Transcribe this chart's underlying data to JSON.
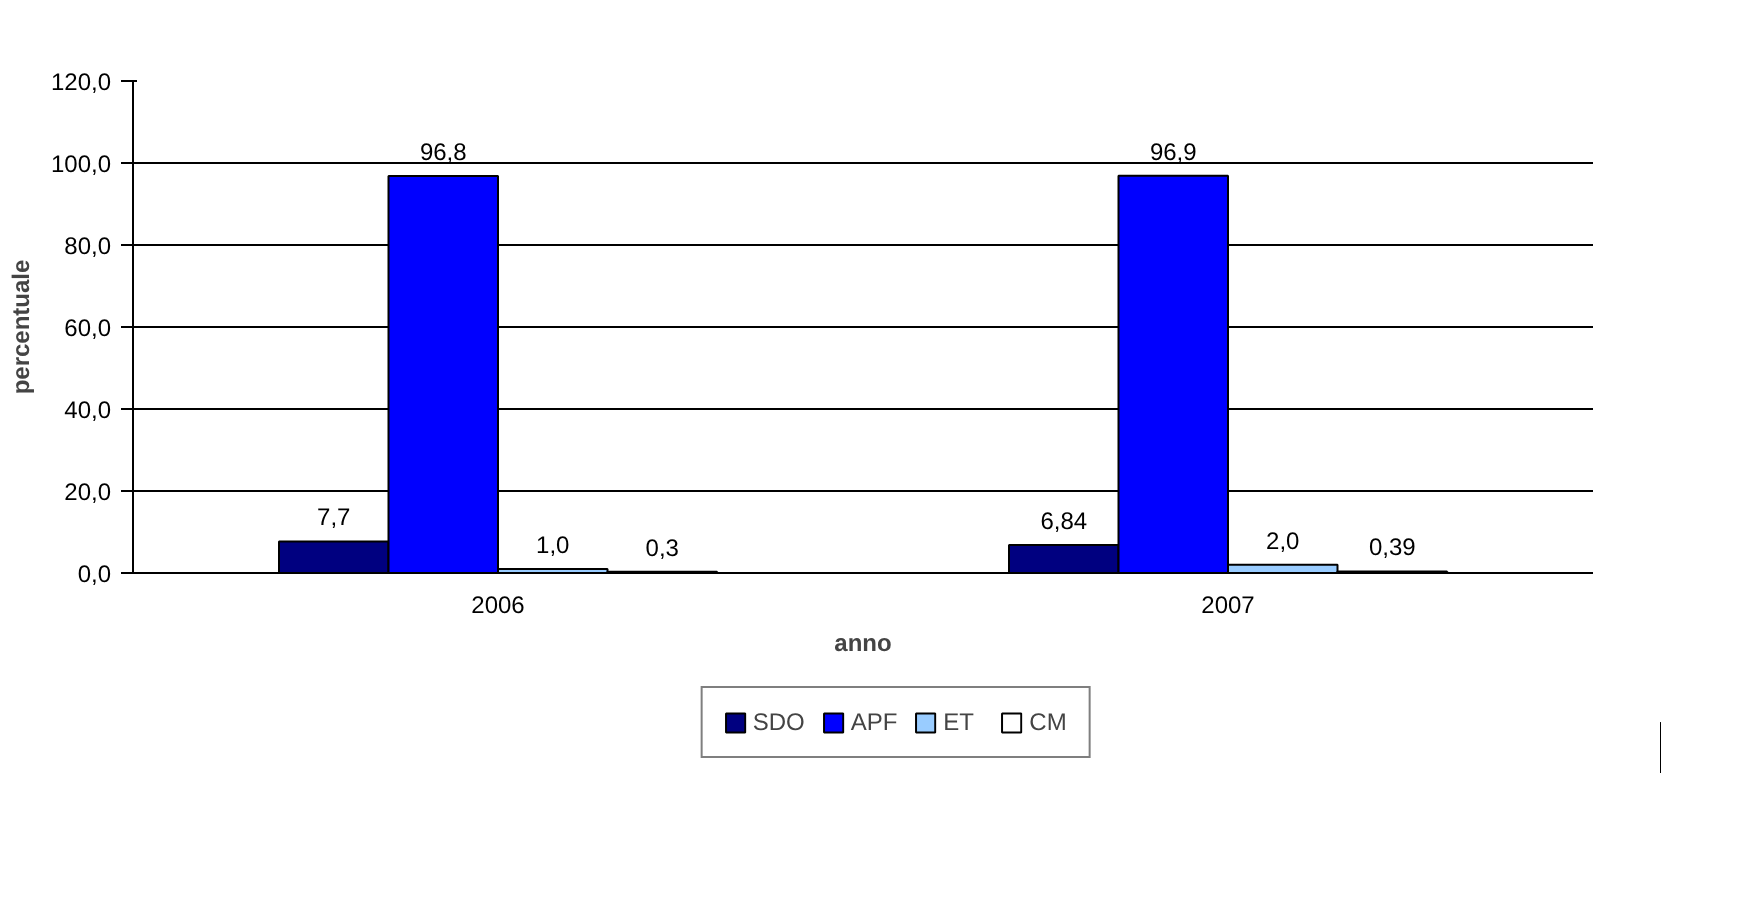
{
  "chart_data": {
    "type": "bar",
    "xlabel": "anno",
    "ylabel": "percentuale",
    "categories": [
      "2006",
      "2007"
    ],
    "series": [
      {
        "name": "SDO",
        "color": "#000080",
        "values": [
          7.7,
          6.84
        ],
        "value_labels": [
          "7,7",
          "6,84"
        ]
      },
      {
        "name": "APF",
        "color": "#0000ff",
        "values": [
          96.8,
          96.9
        ],
        "value_labels": [
          "96,8",
          "96,9"
        ]
      },
      {
        "name": "ET",
        "color": "#99ccff",
        "values": [
          1.0,
          2.0
        ],
        "value_labels": [
          "1,0",
          "2,0"
        ]
      },
      {
        "name": "CM",
        "color": "#ffffff",
        "values": [
          0.3,
          0.39
        ],
        "value_labels": [
          "0,3",
          "0,39"
        ]
      }
    ],
    "ylim": [
      0,
      120
    ],
    "yticks": [
      {
        "value": 0,
        "label": "0,0"
      },
      {
        "value": 20,
        "label": "20,0"
      },
      {
        "value": 40,
        "label": "40,0"
      },
      {
        "value": 60,
        "label": "60,0"
      },
      {
        "value": 80,
        "label": "80,0"
      },
      {
        "value": 100,
        "label": "100,0"
      },
      {
        "value": 120,
        "label": "120,0"
      }
    ],
    "grid": "y",
    "legend": "bottom"
  }
}
